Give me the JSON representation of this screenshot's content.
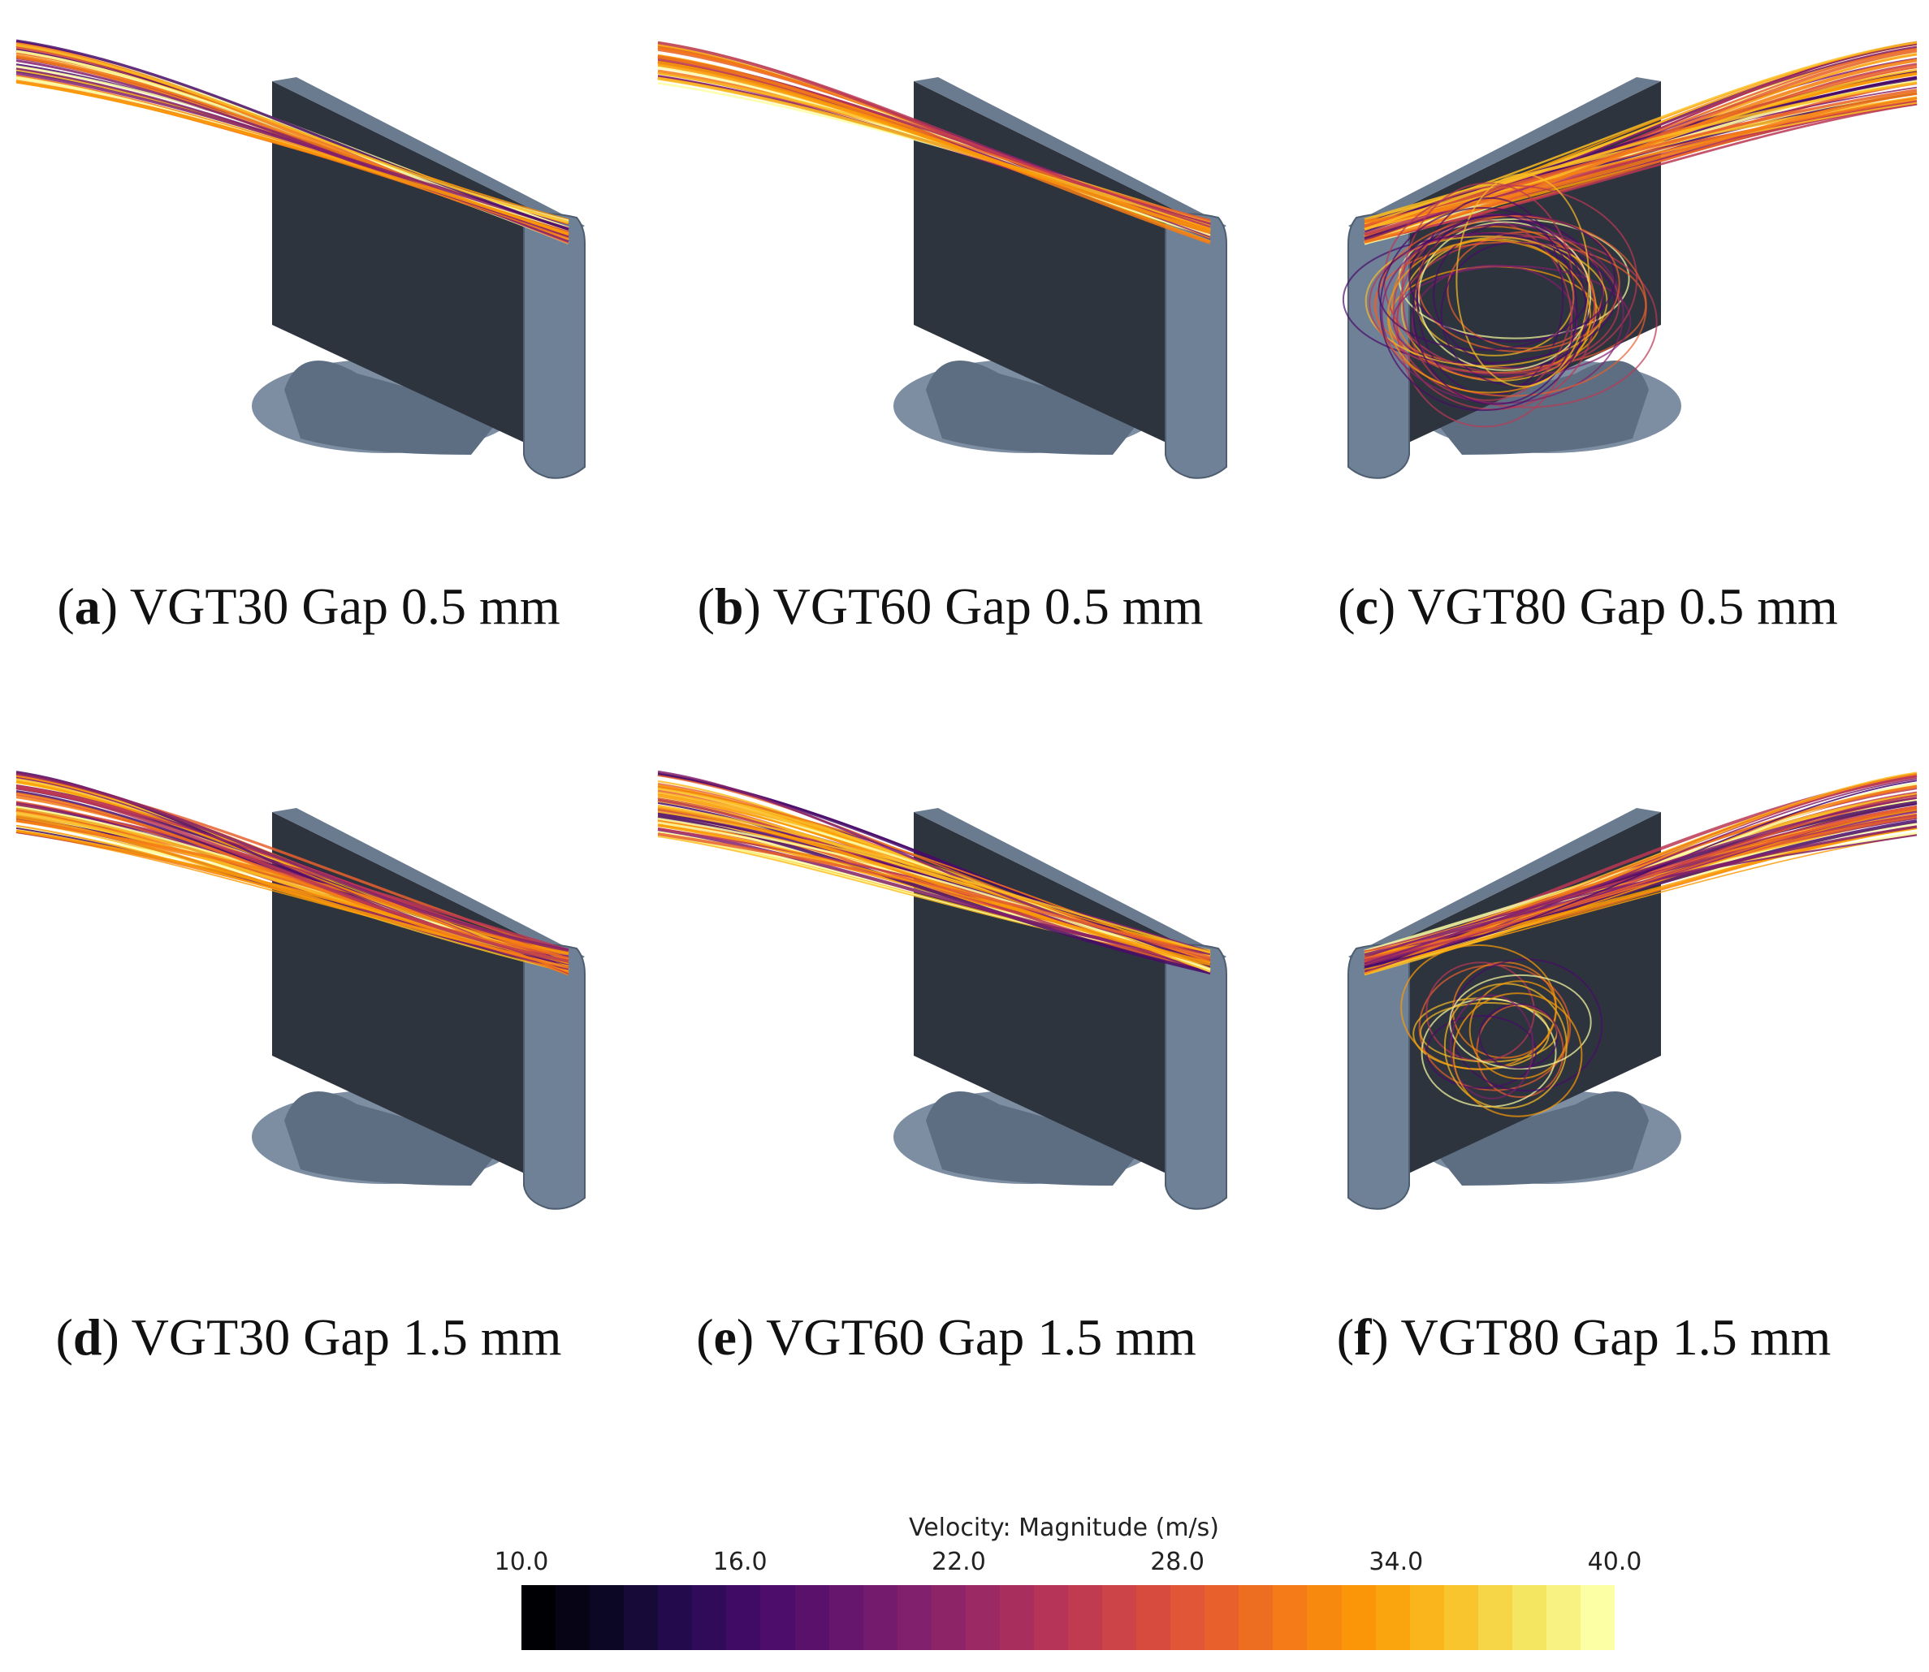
{
  "figure": {
    "panels": [
      {
        "letter": "a",
        "text": "VGT30 Gap 0.5 mm",
        "orientation": "left",
        "pattern": "thin"
      },
      {
        "letter": "b",
        "text": "VGT60 Gap 0.5 mm",
        "orientation": "left",
        "pattern": "thin"
      },
      {
        "letter": "c",
        "text": "VGT80 Gap 0.5 mm",
        "orientation": "right",
        "pattern": "vortex"
      },
      {
        "letter": "d",
        "text": "VGT30 Gap 1.5 mm",
        "orientation": "left",
        "pattern": "wide"
      },
      {
        "letter": "e",
        "text": "VGT60 Gap 1.5 mm",
        "orientation": "left",
        "pattern": "wide"
      },
      {
        "letter": "f",
        "text": "VGT80 Gap 1.5 mm",
        "orientation": "right",
        "pattern": "vortex-small"
      }
    ]
  },
  "colorbar": {
    "title": "Velocity: Magnitude (m/s)",
    "ticks": [
      "10.0",
      "16.0",
      "22.0",
      "28.0",
      "34.0",
      "40.0"
    ],
    "colors": [
      "#000004",
      "#0d0829",
      "#280b54",
      "#480b6a",
      "#65156e",
      "#82206c",
      "#9f2a63",
      "#bb3754",
      "#d44842",
      "#e8602d",
      "#f57d15",
      "#fb9b06",
      "#fbbe23",
      "#f3e35a",
      "#fcffa4"
    ]
  }
}
